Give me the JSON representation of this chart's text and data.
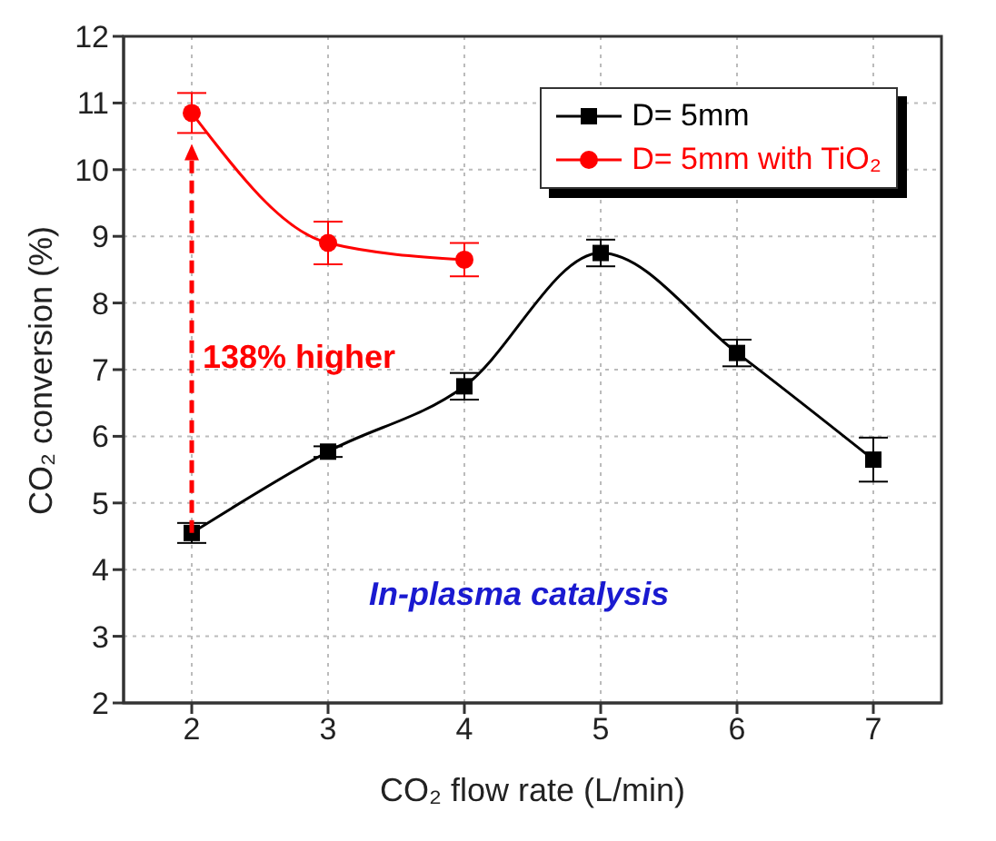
{
  "chart_data": {
    "type": "line",
    "xlabel": "CO₂ flow rate (L/min)",
    "ylabel": "CO₂ conversion (%)",
    "x": [
      2,
      3,
      4,
      5,
      6,
      7
    ],
    "xlim": [
      1.5,
      7.5
    ],
    "xticks": [
      2,
      3,
      4,
      5,
      6,
      7
    ],
    "ylim": [
      2,
      12
    ],
    "yticks": [
      2,
      3,
      4,
      5,
      6,
      7,
      8,
      9,
      10,
      11,
      12
    ],
    "grid": true,
    "legend": "top right",
    "line_style": "solid",
    "series": [
      {
        "name": "D= 5mm",
        "color": "#000000",
        "marker": "square",
        "values": [
          4.55,
          5.77,
          6.75,
          8.75,
          7.25,
          5.65
        ],
        "errors": [
          0.15,
          0.08,
          0.2,
          0.2,
          0.2,
          0.33
        ]
      },
      {
        "name": "D= 5mm with TiO₂",
        "color": "#ff0000",
        "marker": "circle",
        "values": [
          10.85,
          8.9,
          8.65,
          null,
          null,
          null
        ],
        "errors": [
          0.3,
          0.32,
          0.25,
          null,
          null,
          null
        ]
      }
    ],
    "annotations": [
      "138% higher",
      "In-plasma catalysis"
    ]
  }
}
